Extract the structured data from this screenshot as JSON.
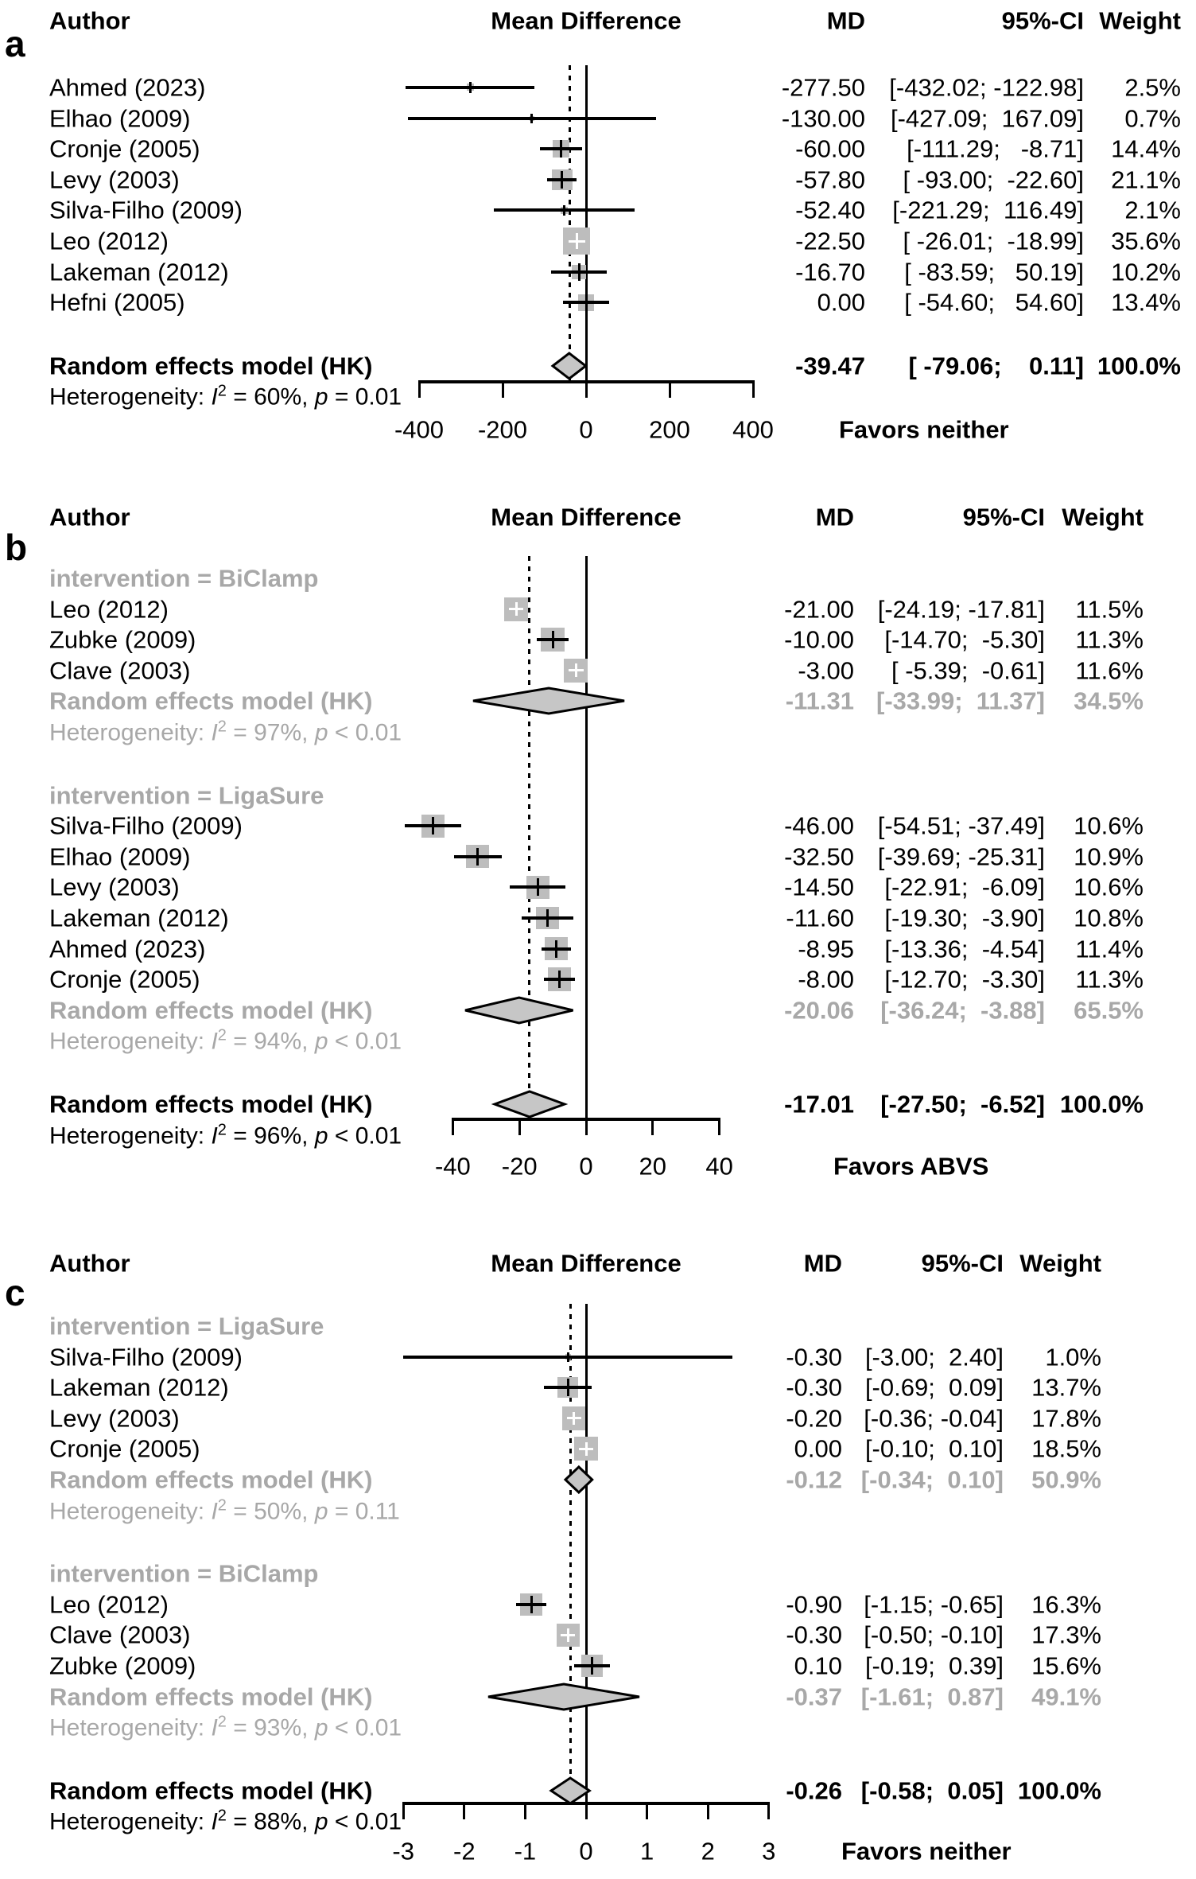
{
  "figure": {
    "kind": "forest-plot-meta-analysis",
    "panel_count": 3
  },
  "chart_data": [
    {
      "letter": "a",
      "type": "forest",
      "title_row": {
        "author": "Author",
        "plot": "Mean Difference",
        "md": "MD",
        "ci": "95%-CI",
        "weight": "Weight"
      },
      "axis": {
        "tick_values": [
          -400,
          -200,
          0,
          200,
          400
        ],
        "tick_labels": [
          "-400",
          "-200",
          "0",
          "200",
          "400"
        ],
        "xlim": [
          -450,
          450
        ],
        "favors": "Favors neither"
      },
      "pooled_md": -39.47,
      "items": [
        {
          "kind": "study",
          "author": "Ahmed (2023)",
          "md": -277.5,
          "lo": -432.02,
          "hi": -122.98,
          "md_text": "-277.50",
          "ci_text": "[-432.02; -122.98]",
          "weight": 2.5,
          "weight_text": "2.5%"
        },
        {
          "kind": "study",
          "author": "Elhao (2009)",
          "md": -130.0,
          "lo": -427.09,
          "hi": 167.09,
          "md_text": "-130.00",
          "ci_text": "[-427.09;  167.09]",
          "weight": 0.7,
          "weight_text": "0.7%"
        },
        {
          "kind": "study",
          "author": "Cronje (2005)",
          "md": -60.0,
          "lo": -111.29,
          "hi": -8.71,
          "md_text": "-60.00",
          "ci_text": "[-111.29;   -8.71]",
          "weight": 14.4,
          "weight_text": "14.4%"
        },
        {
          "kind": "study",
          "author": "Levy (2003)",
          "md": -57.8,
          "lo": -93.0,
          "hi": -22.6,
          "md_text": "-57.80",
          "ci_text": "[ -93.00;  -22.60]",
          "weight": 21.1,
          "weight_text": "21.1%"
        },
        {
          "kind": "study",
          "author": "Silva-Filho (2009)",
          "md": -52.4,
          "lo": -221.29,
          "hi": 116.49,
          "md_text": "-52.40",
          "ci_text": "[-221.29;  116.49]",
          "weight": 2.1,
          "weight_text": "2.1%"
        },
        {
          "kind": "study",
          "author": "Leo (2012)",
          "md": -22.5,
          "lo": -26.01,
          "hi": -18.99,
          "md_text": "-22.50",
          "ci_text": "[ -26.01;  -18.99]",
          "weight": 35.6,
          "weight_text": "35.6%"
        },
        {
          "kind": "study",
          "author": "Lakeman (2012)",
          "md": -16.7,
          "lo": -83.59,
          "hi": 50.19,
          "md_text": "-16.70",
          "ci_text": "[ -83.59;   50.19]",
          "weight": 10.2,
          "weight_text": "10.2%"
        },
        {
          "kind": "study",
          "author": "Hefni (2005)",
          "md": 0.0,
          "lo": -54.6,
          "hi": 54.6,
          "md_text": "0.00",
          "ci_text": "[ -54.60;   54.60]",
          "weight": 13.4,
          "weight_text": "13.4%"
        },
        {
          "kind": "gap"
        },
        {
          "kind": "summary",
          "label": "Random effects model (HK)",
          "md": -39.47,
          "lo": -79.06,
          "hi": 0.11,
          "md_text": "-39.47",
          "ci_text": "[ -79.06;    0.11]",
          "weight_text": "100.0%",
          "muted": false
        },
        {
          "kind": "het",
          "muted": false,
          "pre": "Heterogeneity: ",
          "i2": "I",
          "sup": "2",
          "mid": " = 60%, ",
          "p": "p",
          "tail": " = 0.01"
        }
      ]
    },
    {
      "letter": "b",
      "type": "forest",
      "title_row": {
        "author": "Author",
        "plot": "Mean Difference",
        "md": "MD",
        "ci": "95%-CI",
        "weight": "Weight"
      },
      "axis": {
        "tick_values": [
          -40,
          -20,
          0,
          20,
          40
        ],
        "tick_labels": [
          "-40",
          "-20",
          "0",
          "20",
          "40"
        ],
        "xlim": [
          -58,
          42
        ],
        "favors": "Favors ABVS"
      },
      "pooled_md": -17.01,
      "items": [
        {
          "kind": "subgroup",
          "label": "intervention = BiClamp"
        },
        {
          "kind": "study",
          "author": "Leo (2012)",
          "md": -21.0,
          "lo": -24.19,
          "hi": -17.81,
          "md_text": "-21.00",
          "ci_text": "[-24.19; -17.81]",
          "weight": 11.5,
          "weight_text": "11.5%"
        },
        {
          "kind": "study",
          "author": "Zubke (2009)",
          "md": -10.0,
          "lo": -14.7,
          "hi": -5.3,
          "md_text": "-10.00",
          "ci_text": "[-14.70;  -5.30]",
          "weight": 11.3,
          "weight_text": "11.3%"
        },
        {
          "kind": "study",
          "author": "Clave (2003)",
          "md": -3.0,
          "lo": -5.39,
          "hi": -0.61,
          "md_text": "-3.00",
          "ci_text": "[ -5.39;  -0.61]",
          "weight": 11.6,
          "weight_text": "11.6%"
        },
        {
          "kind": "summary",
          "label": "Random effects model (HK)",
          "md": -11.31,
          "lo": -33.99,
          "hi": 11.37,
          "md_text": "-11.31",
          "ci_text": "[-33.99;  11.37]",
          "weight_text": "34.5%",
          "muted": true
        },
        {
          "kind": "het",
          "muted": true,
          "pre": "Heterogeneity: ",
          "i2": "I",
          "sup": "2",
          "mid": " = 97%, ",
          "p": "p",
          "tail": " < 0.01"
        },
        {
          "kind": "gap"
        },
        {
          "kind": "subgroup",
          "label": "intervention = LigaSure"
        },
        {
          "kind": "study",
          "author": "Silva-Filho (2009)",
          "md": -46.0,
          "lo": -54.51,
          "hi": -37.49,
          "md_text": "-46.00",
          "ci_text": "[-54.51; -37.49]",
          "weight": 10.6,
          "weight_text": "10.6%"
        },
        {
          "kind": "study",
          "author": "Elhao (2009)",
          "md": -32.5,
          "lo": -39.69,
          "hi": -25.31,
          "md_text": "-32.50",
          "ci_text": "[-39.69; -25.31]",
          "weight": 10.9,
          "weight_text": "10.9%"
        },
        {
          "kind": "study",
          "author": "Levy (2003)",
          "md": -14.5,
          "lo": -22.91,
          "hi": -6.09,
          "md_text": "-14.50",
          "ci_text": "[-22.91;  -6.09]",
          "weight": 10.6,
          "weight_text": "10.6%"
        },
        {
          "kind": "study",
          "author": "Lakeman (2012)",
          "md": -11.6,
          "lo": -19.3,
          "hi": -3.9,
          "md_text": "-11.60",
          "ci_text": "[-19.30;  -3.90]",
          "weight": 10.8,
          "weight_text": "10.8%"
        },
        {
          "kind": "study",
          "author": "Ahmed (2023)",
          "md": -8.95,
          "lo": -13.36,
          "hi": -4.54,
          "md_text": "-8.95",
          "ci_text": "[-13.36;  -4.54]",
          "weight": 11.4,
          "weight_text": "11.4%"
        },
        {
          "kind": "study",
          "author": "Cronje (2005)",
          "md": -8.0,
          "lo": -12.7,
          "hi": -3.3,
          "md_text": "-8.00",
          "ci_text": "[-12.70;  -3.30]",
          "weight": 11.3,
          "weight_text": "11.3%"
        },
        {
          "kind": "summary",
          "label": "Random effects model (HK)",
          "md": -20.06,
          "lo": -36.24,
          "hi": -3.88,
          "md_text": "-20.06",
          "ci_text": "[-36.24;  -3.88]",
          "weight_text": "65.5%",
          "muted": true
        },
        {
          "kind": "het",
          "muted": true,
          "pre": "Heterogeneity: ",
          "i2": "I",
          "sup": "2",
          "mid": " = 94%, ",
          "p": "p",
          "tail": " < 0.01"
        },
        {
          "kind": "gap"
        },
        {
          "kind": "summary",
          "label": "Random effects model (HK)",
          "md": -17.01,
          "lo": -27.5,
          "hi": -6.52,
          "md_text": "-17.01",
          "ci_text": "[-27.50;  -6.52]",
          "weight_text": "100.0%",
          "muted": false
        },
        {
          "kind": "het",
          "muted": false,
          "pre": "Heterogeneity: ",
          "i2": "I",
          "sup": "2",
          "mid": " = 96%, ",
          "p": "p",
          "tail": " < 0.01"
        }
      ]
    },
    {
      "letter": "c",
      "type": "forest",
      "title_row": {
        "author": "Author",
        "plot": "Mean Difference",
        "md": "MD",
        "ci": "95%-CI",
        "weight": "Weight"
      },
      "axis": {
        "tick_values": [
          -3,
          -2,
          -1,
          0,
          1,
          2,
          3
        ],
        "tick_labels": [
          "-3",
          "-2",
          "-1",
          "0",
          "1",
          "2",
          "3"
        ],
        "xlim": [
          -3.2,
          3.2
        ],
        "favors": "Favors neither"
      },
      "pooled_md": -0.26,
      "items": [
        {
          "kind": "subgroup",
          "label": "intervention = LigaSure"
        },
        {
          "kind": "study",
          "author": "Silva-Filho (2009)",
          "md": -0.3,
          "lo": -3.0,
          "hi": 2.4,
          "md_text": "-0.30",
          "ci_text": "[-3.00;  2.40]",
          "weight": 1.0,
          "weight_text": "1.0%"
        },
        {
          "kind": "study",
          "author": "Lakeman (2012)",
          "md": -0.3,
          "lo": -0.69,
          "hi": 0.09,
          "md_text": "-0.30",
          "ci_text": "[-0.69;  0.09]",
          "weight": 13.7,
          "weight_text": "13.7%"
        },
        {
          "kind": "study",
          "author": "Levy (2003)",
          "md": -0.2,
          "lo": -0.36,
          "hi": -0.04,
          "md_text": "-0.20",
          "ci_text": "[-0.36; -0.04]",
          "weight": 17.8,
          "weight_text": "17.8%"
        },
        {
          "kind": "study",
          "author": "Cronje (2005)",
          "md": 0.0,
          "lo": -0.1,
          "hi": 0.1,
          "md_text": "0.00",
          "ci_text": "[-0.10;  0.10]",
          "weight": 18.5,
          "weight_text": "18.5%"
        },
        {
          "kind": "summary",
          "label": "Random effects model (HK)",
          "md": -0.12,
          "lo": -0.34,
          "hi": 0.1,
          "md_text": "-0.12",
          "ci_text": "[-0.34;  0.10]",
          "weight_text": "50.9%",
          "muted": true
        },
        {
          "kind": "het",
          "muted": true,
          "pre": "Heterogeneity: ",
          "i2": "I",
          "sup": "2",
          "mid": " = 50%, ",
          "p": "p",
          "tail": " = 0.11"
        },
        {
          "kind": "gap"
        },
        {
          "kind": "subgroup",
          "label": "intervention = BiClamp"
        },
        {
          "kind": "study",
          "author": "Leo (2012)",
          "md": -0.9,
          "lo": -1.15,
          "hi": -0.65,
          "md_text": "-0.90",
          "ci_text": "[-1.15; -0.65]",
          "weight": 16.3,
          "weight_text": "16.3%"
        },
        {
          "kind": "study",
          "author": "Clave (2003)",
          "md": -0.3,
          "lo": -0.5,
          "hi": -0.1,
          "md_text": "-0.30",
          "ci_text": "[-0.50; -0.10]",
          "weight": 17.3,
          "weight_text": "17.3%"
        },
        {
          "kind": "study",
          "author": "Zubke (2009)",
          "md": 0.1,
          "lo": -0.19,
          "hi": 0.39,
          "md_text": "0.10",
          "ci_text": "[-0.19;  0.39]",
          "weight": 15.6,
          "weight_text": "15.6%"
        },
        {
          "kind": "summary",
          "label": "Random effects model (HK)",
          "md": -0.37,
          "lo": -1.61,
          "hi": 0.87,
          "md_text": "-0.37",
          "ci_text": "[-1.61;  0.87]",
          "weight_text": "49.1%",
          "muted": true
        },
        {
          "kind": "het",
          "muted": true,
          "pre": "Heterogeneity: ",
          "i2": "I",
          "sup": "2",
          "mid": " = 93%, ",
          "p": "p",
          "tail": " < 0.01"
        },
        {
          "kind": "gap"
        },
        {
          "kind": "summary",
          "label": "Random effects model (HK)",
          "md": -0.26,
          "lo": -0.58,
          "hi": 0.05,
          "md_text": "-0.26",
          "ci_text": "[-0.58;  0.05]",
          "weight_text": "100.0%",
          "muted": false
        },
        {
          "kind": "het",
          "muted": false,
          "pre": "Heterogeneity: ",
          "i2": "I",
          "sup": "2",
          "mid": " = 88%, ",
          "p": "p",
          "tail": " < 0.01"
        }
      ]
    }
  ]
}
